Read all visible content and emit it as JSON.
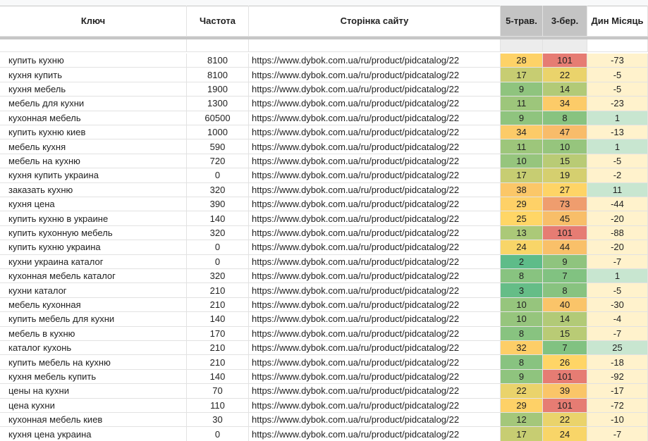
{
  "table": {
    "headers": [
      "Ключ",
      "Частота",
      "Сторінка сайту",
      "5-трав.",
      "3-бер.",
      "Дин Місяць"
    ],
    "url": "https://www.dybok.com.ua/ru/product/pidcatalog/22",
    "rows": [
      [
        "купить кухню",
        8100,
        28,
        101,
        -73
      ],
      [
        "кухня купить",
        8100,
        17,
        22,
        -5
      ],
      [
        "кухня мебель",
        1900,
        9,
        14,
        -5
      ],
      [
        "мебель для кухни",
        1300,
        11,
        34,
        -23
      ],
      [
        "кухонная мебель",
        60500,
        9,
        8,
        1
      ],
      [
        "купить кухню киев",
        1000,
        34,
        47,
        -13
      ],
      [
        "мебель кухня",
        590,
        11,
        10,
        1
      ],
      [
        "мебель на кухню",
        720,
        10,
        15,
        -5
      ],
      [
        "кухня купить украина",
        0,
        17,
        19,
        -2
      ],
      [
        "заказать кухню",
        320,
        38,
        27,
        11
      ],
      [
        "кухня цена",
        390,
        29,
        73,
        -44
      ],
      [
        "купить кухню в украине",
        140,
        25,
        45,
        -20
      ],
      [
        "купить кухонную мебель",
        320,
        13,
        101,
        -88
      ],
      [
        "купить кухню украина",
        0,
        24,
        44,
        -20
      ],
      [
        "кухни украина каталог",
        0,
        2,
        9,
        -7
      ],
      [
        "кухонная мебель каталог",
        320,
        8,
        7,
        1
      ],
      [
        "кухни каталог",
        210,
        3,
        8,
        -5
      ],
      [
        "мебель кухонная",
        210,
        10,
        40,
        -30
      ],
      [
        "купить мебель для кухни",
        140,
        10,
        14,
        -4
      ],
      [
        "мебель в кухню",
        170,
        8,
        15,
        -7
      ],
      [
        "каталог кухонь",
        210,
        32,
        7,
        25
      ],
      [
        "купить мебель на кухню",
        210,
        8,
        26,
        -18
      ],
      [
        "кухня мебель купить",
        140,
        9,
        101,
        -92
      ],
      [
        "цены на кухни",
        70,
        22,
        39,
        -17
      ],
      [
        "цена кухни",
        110,
        29,
        101,
        -72
      ],
      [
        "кухонная мебель киев",
        30,
        12,
        22,
        -10
      ],
      [
        "кухня цена украина",
        0,
        17,
        24,
        -7
      ]
    ]
  }
}
